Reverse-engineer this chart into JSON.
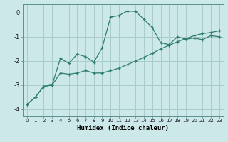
{
  "title": "",
  "xlabel": "Humidex (Indice chaleur)",
  "bg_color": "#cce8e8",
  "grid_color": "#aacccc",
  "line_color": "#2d7d6e",
  "xlim": [
    -0.5,
    23.5
  ],
  "ylim": [
    -4.3,
    0.35
  ],
  "x_ticks": [
    0,
    1,
    2,
    3,
    4,
    5,
    6,
    7,
    8,
    9,
    10,
    11,
    12,
    13,
    14,
    15,
    16,
    17,
    18,
    19,
    20,
    21,
    22,
    23
  ],
  "y_ticks": [
    0,
    -1,
    -2,
    -3,
    -4
  ],
  "curve1_x": [
    0,
    1,
    2,
    3,
    4,
    5,
    6,
    7,
    8,
    9,
    10,
    11,
    12,
    13,
    14,
    15,
    16,
    17,
    18,
    19,
    20,
    21,
    22,
    23
  ],
  "curve1_y": [
    -3.8,
    -3.5,
    -3.05,
    -3.0,
    -1.9,
    -2.1,
    -1.72,
    -1.82,
    -2.05,
    -1.45,
    -0.18,
    -0.12,
    0.07,
    0.05,
    -0.28,
    -0.62,
    -1.25,
    -1.32,
    -1.0,
    -1.1,
    -1.05,
    -1.12,
    -0.95,
    -1.0
  ],
  "curve2_x": [
    0,
    1,
    2,
    3,
    4,
    5,
    6,
    7,
    8,
    9,
    10,
    11,
    12,
    13,
    14,
    15,
    16,
    17,
    18,
    19,
    20,
    21,
    22,
    23
  ],
  "curve2_y": [
    -3.8,
    -3.5,
    -3.05,
    -3.0,
    -2.5,
    -2.55,
    -2.5,
    -2.4,
    -2.5,
    -2.5,
    -2.4,
    -2.3,
    -2.15,
    -2.0,
    -1.85,
    -1.68,
    -1.5,
    -1.35,
    -1.2,
    -1.08,
    -0.95,
    -0.87,
    -0.82,
    -0.75
  ]
}
